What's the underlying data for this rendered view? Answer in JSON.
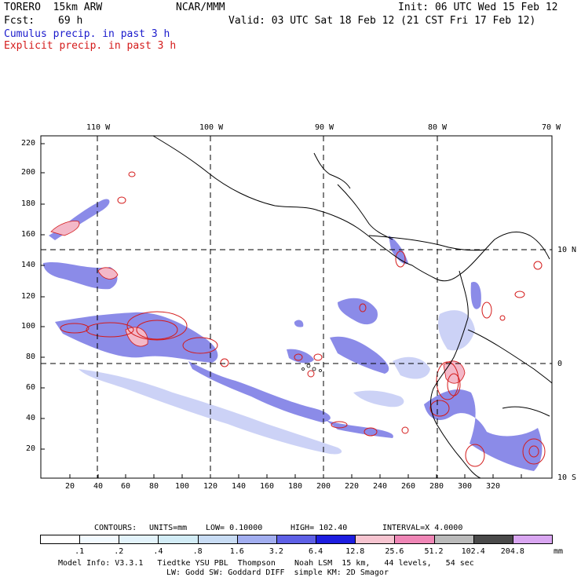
{
  "header": {
    "model": "TORERO  15km ARW",
    "org": "NCAR/MMM",
    "init": "Init: 06 UTC Wed 15 Feb 12",
    "fcst_label": "Fcst:",
    "fcst_value": "69 h",
    "valid": "Valid: 03 UTC Sat 18 Feb 12 (21 CST Fri 17 Feb 12)",
    "legend_cumulus": "Cumulus precip. in past 3 h",
    "legend_explicit": "Explicit precip. in past 3 h"
  },
  "map": {
    "top_longitudes": [
      "110 W",
      "100 W",
      "90 W",
      "80 W",
      "70 W"
    ],
    "right_latitudes": [
      "10 N",
      "0",
      "10 S"
    ],
    "y_ticks": [
      "220",
      "200",
      "180",
      "160",
      "140",
      "120",
      "100",
      "80",
      "60",
      "40",
      "20"
    ],
    "x_ticks": [
      "20",
      "40",
      "60",
      "80",
      "100",
      "120",
      "140",
      "160",
      "180",
      "200",
      "220",
      "240",
      "260",
      "280",
      "300",
      "320"
    ],
    "colors": {
      "cumulus": "#2b2bd6",
      "cumulus_light": "#9aa6ee",
      "explicit": "#d41a1a",
      "pink": "#f3b8c8"
    }
  },
  "contours": {
    "label": "CONTOURS:",
    "units": "UNITS=mm",
    "low": "LOW= 0.10000",
    "high": "HIGH= 102.40",
    "interval": "INTERVAL=X 4.0000"
  },
  "colorbar": {
    "labels": [
      ".1",
      ".2",
      ".4",
      ".8",
      "1.6",
      "3.2",
      "6.4",
      "12.8",
      "25.6",
      "51.2",
      "102.4",
      "204.8"
    ],
    "unit": "mm",
    "colors": [
      "#ffffff",
      "#f2faff",
      "#e3f3fb",
      "#d2ecf6",
      "#c8dcf4",
      "#a2aef0",
      "#5e60e6",
      "#1d1de0",
      "#f6c4d0",
      "#ef86b6",
      "#bababa",
      "#4a4a4a",
      "#d9a6f1"
    ]
  },
  "footer": {
    "line1": "Model Info: V3.3.1   Tiedtke YSU PBL  Thompson    Noah LSM  15 km,   44 levels,   54 sec",
    "line2": "LW: Godd SW: Goddard DIFF  simple KM: 2D Smagor"
  }
}
